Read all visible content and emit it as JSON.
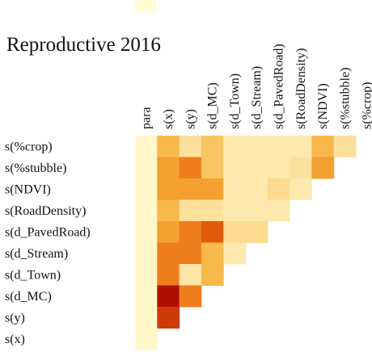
{
  "chart_data": {
    "type": "heatmap",
    "title": "Reproductive 2016",
    "x": [
      "para",
      "s(x)",
      "s(y)",
      "s(d_MC)",
      "s(d_Town)",
      "s(d_Stream)",
      "s(d_PavedRoad)",
      "s(RoadDensity)",
      "s(NDVI)",
      "s(%stubble)",
      "s(%crop)"
    ],
    "y": [
      "s(%crop)",
      "s(%stubble)",
      "s(NDVI)",
      "s(RoadDensity)",
      "s(d_PavedRoad)",
      "s(d_Stream)",
      "s(d_Town)",
      "s(d_MC)",
      "s(y)",
      "s(x)"
    ],
    "values": [
      [
        0.02,
        0.3,
        0.12,
        0.25,
        0.08,
        0.08,
        0.08,
        0.08,
        0.3,
        0.12,
        null
      ],
      [
        0.02,
        0.4,
        0.55,
        0.25,
        0.08,
        0.08,
        0.08,
        0.12,
        0.4,
        null,
        null
      ],
      [
        0.02,
        0.4,
        0.4,
        0.4,
        0.08,
        0.08,
        0.15,
        0.08,
        null,
        null,
        null
      ],
      [
        0.02,
        0.3,
        0.12,
        0.12,
        0.08,
        0.08,
        0.08,
        null,
        null,
        null,
        null
      ],
      [
        0.02,
        0.4,
        0.55,
        0.7,
        0.15,
        0.15,
        null,
        null,
        null,
        null,
        null
      ],
      [
        0.02,
        0.55,
        0.55,
        0.3,
        0.08,
        null,
        null,
        null,
        null,
        null,
        null
      ],
      [
        0.02,
        0.55,
        0.1,
        0.3,
        null,
        null,
        null,
        null,
        null,
        null,
        null
      ],
      [
        0.02,
        0.95,
        0.55,
        null,
        null,
        null,
        null,
        null,
        null,
        null,
        null
      ],
      [
        0.02,
        0.8,
        null,
        null,
        null,
        null,
        null,
        null,
        null,
        null,
        null
      ],
      [
        0.02,
        null,
        null,
        null,
        null,
        null,
        null,
        null,
        null,
        null,
        null
      ]
    ],
    "colormap": [
      "#fffbd2",
      "#f7b13c",
      "#e9630c",
      "#a30000"
    ]
  }
}
